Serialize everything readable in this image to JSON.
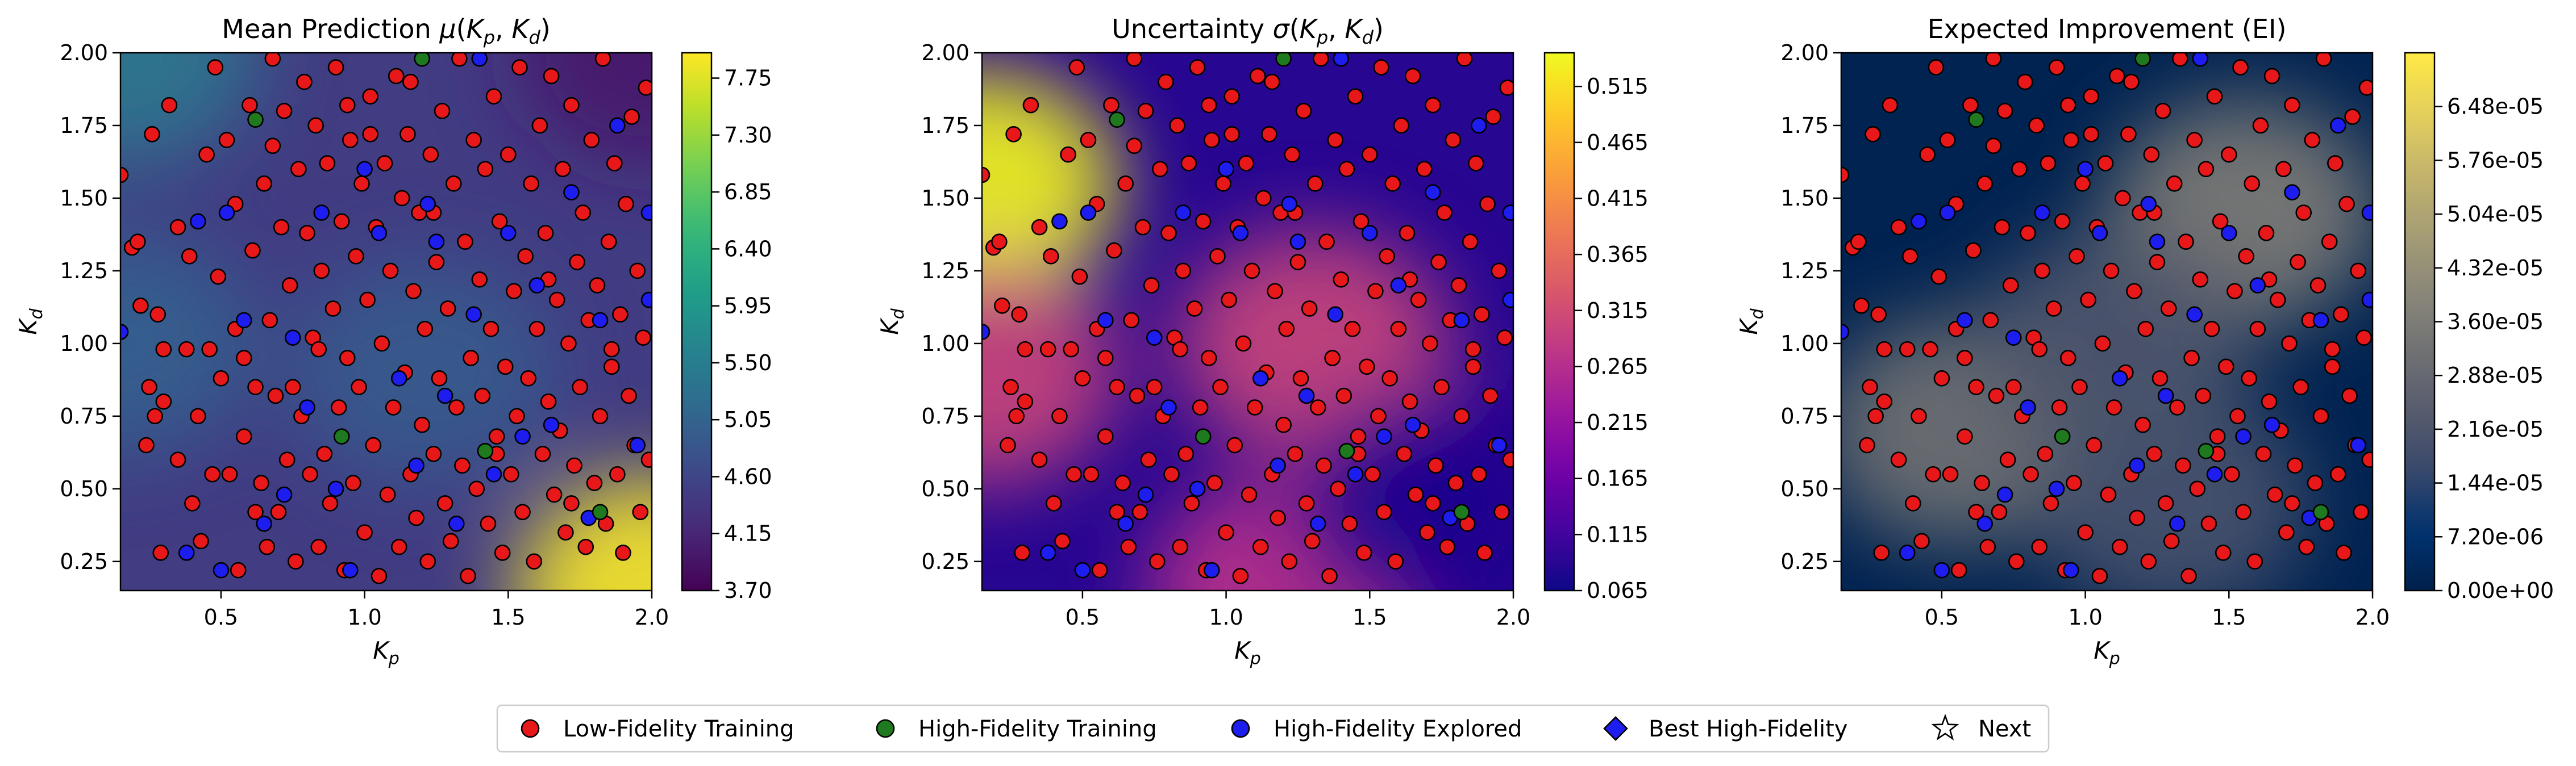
{
  "figure": {
    "legend": {
      "placement": "bottom-center",
      "items": [
        {
          "label": "Low-Fidelity Training",
          "marker": "circle",
          "color": "#e8181a"
        },
        {
          "label": "High-Fidelity Training",
          "marker": "circle",
          "color": "#1f7a1f"
        },
        {
          "label": "High-Fidelity Explored",
          "marker": "circle",
          "color": "#1d1df0"
        },
        {
          "label": "Best High-Fidelity",
          "marker": "diamond",
          "color": "#1d1df0"
        },
        {
          "label": "Next",
          "marker": "star",
          "color": "#ffffff"
        }
      ]
    },
    "marker_stroke": "#000000"
  },
  "chart_data": [
    {
      "type": "heatmap",
      "title": "Mean Prediction μ(K_p, K_d)",
      "title_main": "Mean Prediction ",
      "title_sym": "μ",
      "xlabel": "K_p",
      "ylabel": "K_d",
      "xlim": [
        0.15,
        2.0
      ],
      "ylim": [
        0.15,
        2.0
      ],
      "xticks": [
        0.5,
        1.0,
        1.5,
        2.0
      ],
      "xtick_labels": [
        "0.5",
        "1.0",
        "1.5",
        "2.0"
      ],
      "yticks": [
        0.25,
        0.5,
        0.75,
        1.0,
        1.25,
        1.5,
        1.75,
        2.0
      ],
      "ytick_labels": [
        "0.25",
        "0.50",
        "0.75",
        "1.00",
        "1.25",
        "1.50",
        "1.75",
        "2.00"
      ],
      "colormap": "viridis",
      "colorbar": {
        "range": [
          3.7,
          7.95
        ],
        "ticks": [
          3.7,
          4.15,
          4.6,
          5.05,
          5.5,
          5.95,
          6.4,
          6.85,
          7.3,
          7.75
        ],
        "tick_labels": [
          "3.70",
          "4.15",
          "4.60",
          "5.05",
          "5.50",
          "5.95",
          "6.40",
          "6.85",
          "7.30",
          "7.75"
        ]
      },
      "field_features": [
        {
          "x": 0.15,
          "y": 2.0,
          "value": 5.4
        },
        {
          "x": 0.15,
          "y": 1.0,
          "value": 5.0
        },
        {
          "x": 1.2,
          "y": 0.9,
          "value": 4.9
        },
        {
          "x": 2.0,
          "y": 0.15,
          "value": 7.9
        },
        {
          "x": 2.0,
          "y": 2.0,
          "value": 4.0
        }
      ],
      "grid": false
    },
    {
      "type": "heatmap",
      "title": "Uncertainty σ(K_p, K_d)",
      "title_main": "Uncertainty ",
      "title_sym": "σ",
      "xlabel": "K_p",
      "ylabel": "K_d",
      "xlim": [
        0.15,
        2.0
      ],
      "ylim": [
        0.15,
        2.0
      ],
      "xticks": [
        0.5,
        1.0,
        1.5,
        2.0
      ],
      "xtick_labels": [
        "0.5",
        "1.0",
        "1.5",
        "2.0"
      ],
      "yticks": [
        0.25,
        0.5,
        0.75,
        1.0,
        1.25,
        1.5,
        1.75,
        2.0
      ],
      "ytick_labels": [
        "0.25",
        "0.50",
        "0.75",
        "1.00",
        "1.25",
        "1.50",
        "1.75",
        "2.00"
      ],
      "colormap": "plasma",
      "colorbar": {
        "range": [
          0.065,
          0.545
        ],
        "ticks": [
          0.065,
          0.115,
          0.165,
          0.215,
          0.265,
          0.315,
          0.365,
          0.415,
          0.465,
          0.515
        ],
        "tick_labels": [
          "0.065",
          "0.115",
          "0.165",
          "0.215",
          "0.265",
          "0.315",
          "0.365",
          "0.415",
          "0.465",
          "0.515"
        ]
      },
      "field_features": [
        {
          "x": 0.15,
          "y": 1.55,
          "value": 0.54
        },
        {
          "x": 0.15,
          "y": 0.9,
          "value": 0.3
        },
        {
          "x": 1.3,
          "y": 1.0,
          "value": 0.3
        },
        {
          "x": 1.2,
          "y": 0.15,
          "value": 0.27
        },
        {
          "x": 1.7,
          "y": 0.45,
          "value": 0.08
        }
      ],
      "grid": false
    },
    {
      "type": "heatmap",
      "title": "Expected Improvement (EI)",
      "title_main": "Expected Improvement (EI)",
      "title_sym": "",
      "xlabel": "K_p",
      "ylabel": "K_d",
      "xlim": [
        0.15,
        2.0
      ],
      "ylim": [
        0.15,
        2.0
      ],
      "xticks": [
        0.5,
        1.0,
        1.5,
        2.0
      ],
      "xtick_labels": [
        "0.5",
        "1.0",
        "1.5",
        "2.0"
      ],
      "yticks": [
        0.25,
        0.5,
        0.75,
        1.0,
        1.25,
        1.5,
        1.75,
        2.0
      ],
      "ytick_labels": [
        "0.25",
        "0.50",
        "0.75",
        "1.00",
        "1.25",
        "1.50",
        "1.75",
        "2.00"
      ],
      "colormap": "cividis",
      "colorbar": {
        "range": [
          0.0,
          7.2e-05
        ],
        "ticks": [
          0.0,
          7.2e-06,
          1.44e-05,
          2.16e-05,
          2.88e-05,
          3.6e-05,
          4.32e-05,
          5.04e-05,
          5.76e-05,
          6.48e-05
        ],
        "tick_labels": [
          "0.00e+00",
          "7.20e-06",
          "1.44e-05",
          "2.16e-05",
          "2.88e-05",
          "3.60e-05",
          "4.32e-05",
          "5.04e-05",
          "5.76e-05",
          "6.48e-05"
        ]
      },
      "field_features": [
        {
          "x": 1.55,
          "y": 1.45,
          "value": 3.6e-05
        },
        {
          "x": 0.55,
          "y": 0.7,
          "value": 3.2e-05
        },
        {
          "x": 1.1,
          "y": 1.0,
          "value": 2.2e-05
        },
        {
          "x": 1.3,
          "y": 0.45,
          "value": 2e-05
        }
      ],
      "grid": false
    }
  ],
  "scatter": {
    "low_fidelity": [
      [
        0.15,
        1.58
      ],
      [
        0.19,
        1.33
      ],
      [
        0.21,
        1.35
      ],
      [
        0.22,
        1.13
      ],
      [
        0.24,
        0.65
      ],
      [
        0.25,
        0.85
      ],
      [
        0.27,
        0.75
      ],
      [
        0.28,
        1.1
      ],
      [
        0.29,
        0.28
      ],
      [
        0.3,
        0.8
      ],
      [
        0.32,
        1.82
      ],
      [
        0.35,
        1.4
      ],
      [
        0.38,
        0.98
      ],
      [
        0.4,
        0.45
      ],
      [
        0.42,
        0.75
      ],
      [
        0.43,
        0.32
      ],
      [
        0.45,
        1.65
      ],
      [
        0.47,
        0.55
      ],
      [
        0.49,
        1.23
      ],
      [
        0.5,
        0.88
      ],
      [
        0.52,
        1.7
      ],
      [
        0.53,
        0.55
      ],
      [
        0.55,
        1.48
      ],
      [
        0.56,
        0.22
      ],
      [
        0.58,
        0.68
      ],
      [
        0.6,
        1.82
      ],
      [
        0.61,
        1.32
      ],
      [
        0.62,
        0.85
      ],
      [
        0.64,
        0.52
      ],
      [
        0.65,
        1.55
      ],
      [
        0.66,
        0.3
      ],
      [
        0.67,
        1.08
      ],
      [
        0.68,
        1.68
      ],
      [
        0.69,
        0.82
      ],
      [
        0.7,
        0.42
      ],
      [
        0.71,
        1.4
      ],
      [
        0.72,
        1.8
      ],
      [
        0.73,
        0.6
      ],
      [
        0.74,
        1.2
      ],
      [
        0.75,
        0.85
      ],
      [
        0.76,
        0.25
      ],
      [
        0.77,
        1.6
      ],
      [
        0.78,
        0.75
      ],
      [
        0.79,
        1.9
      ],
      [
        0.8,
        1.38
      ],
      [
        0.81,
        0.55
      ],
      [
        0.82,
        1.02
      ],
      [
        0.83,
        1.75
      ],
      [
        0.84,
        0.3
      ],
      [
        0.85,
        1.25
      ],
      [
        0.86,
        0.62
      ],
      [
        0.87,
        1.62
      ],
      [
        0.88,
        0.45
      ],
      [
        0.89,
        1.12
      ],
      [
        0.9,
        1.95
      ],
      [
        0.91,
        0.78
      ],
      [
        0.92,
        1.42
      ],
      [
        0.93,
        0.22
      ],
      [
        0.94,
        0.95
      ],
      [
        0.95,
        1.7
      ],
      [
        0.96,
        0.52
      ],
      [
        0.97,
        1.3
      ],
      [
        0.98,
        0.85
      ],
      [
        0.99,
        1.55
      ],
      [
        1.0,
        0.35
      ],
      [
        1.01,
        1.15
      ],
      [
        1.02,
        1.85
      ],
      [
        1.03,
        0.65
      ],
      [
        1.04,
        1.4
      ],
      [
        1.05,
        0.2
      ],
      [
        1.06,
        1.0
      ],
      [
        1.07,
        1.62
      ],
      [
        1.08,
        0.48
      ],
      [
        1.09,
        1.25
      ],
      [
        1.1,
        0.78
      ],
      [
        1.11,
        1.92
      ],
      [
        1.12,
        0.3
      ],
      [
        1.13,
        1.5
      ],
      [
        1.14,
        0.9
      ],
      [
        1.15,
        1.72
      ],
      [
        1.16,
        0.55
      ],
      [
        1.17,
        1.18
      ],
      [
        1.18,
        0.4
      ],
      [
        1.19,
        1.45
      ],
      [
        1.2,
        0.72
      ],
      [
        1.21,
        1.05
      ],
      [
        1.22,
        0.25
      ],
      [
        1.23,
        1.65
      ],
      [
        1.24,
        0.62
      ],
      [
        1.25,
        1.28
      ],
      [
        1.26,
        0.88
      ],
      [
        1.27,
        1.8
      ],
      [
        1.28,
        0.45
      ],
      [
        1.29,
        1.12
      ],
      [
        1.3,
        0.32
      ],
      [
        1.31,
        1.55
      ],
      [
        1.32,
        0.78
      ],
      [
        1.33,
        1.98
      ],
      [
        1.34,
        0.58
      ],
      [
        1.35,
        1.35
      ],
      [
        1.36,
        0.2
      ],
      [
        1.37,
        0.95
      ],
      [
        1.38,
        1.7
      ],
      [
        1.39,
        0.5
      ],
      [
        1.4,
        1.22
      ],
      [
        1.41,
        0.82
      ],
      [
        1.42,
        1.6
      ],
      [
        1.43,
        0.38
      ],
      [
        1.44,
        1.05
      ],
      [
        1.45,
        1.85
      ],
      [
        1.46,
        0.68
      ],
      [
        1.47,
        1.42
      ],
      [
        1.48,
        0.28
      ],
      [
        1.49,
        0.92
      ],
      [
        1.5,
        1.65
      ],
      [
        1.51,
        0.55
      ],
      [
        1.52,
        1.18
      ],
      [
        1.53,
        0.75
      ],
      [
        1.54,
        1.95
      ],
      [
        1.55,
        0.42
      ],
      [
        1.56,
        1.3
      ],
      [
        1.57,
        0.88
      ],
      [
        1.58,
        1.55
      ],
      [
        1.59,
        0.25
      ],
      [
        1.6,
        1.05
      ],
      [
        1.61,
        1.75
      ],
      [
        1.62,
        0.62
      ],
      [
        1.63,
        1.38
      ],
      [
        1.64,
        0.8
      ],
      [
        1.65,
        1.92
      ],
      [
        1.66,
        0.48
      ],
      [
        1.67,
        1.15
      ],
      [
        1.68,
        0.7
      ],
      [
        1.69,
        1.6
      ],
      [
        1.7,
        0.35
      ],
      [
        1.71,
        1.0
      ],
      [
        1.72,
        1.82
      ],
      [
        1.73,
        0.58
      ],
      [
        1.74,
        1.28
      ],
      [
        1.75,
        0.85
      ],
      [
        1.76,
        1.45
      ],
      [
        1.77,
        0.3
      ],
      [
        1.78,
        1.08
      ],
      [
        1.79,
        1.7
      ],
      [
        1.8,
        0.52
      ],
      [
        1.81,
        1.2
      ],
      [
        1.82,
        0.75
      ],
      [
        1.83,
        1.98
      ],
      [
        1.84,
        0.38
      ],
      [
        1.85,
        1.35
      ],
      [
        1.86,
        0.92
      ],
      [
        1.87,
        1.62
      ],
      [
        1.88,
        0.55
      ],
      [
        1.89,
        1.1
      ],
      [
        1.9,
        0.28
      ],
      [
        1.91,
        1.48
      ],
      [
        1.92,
        0.82
      ],
      [
        1.93,
        1.78
      ],
      [
        1.94,
        0.65
      ],
      [
        1.95,
        1.25
      ],
      [
        1.96,
        0.42
      ],
      [
        1.97,
        1.02
      ],
      [
        1.98,
        1.88
      ],
      [
        1.99,
        0.6
      ],
      [
        0.55,
        1.05
      ],
      [
        0.48,
        1.95
      ],
      [
        0.35,
        0.6
      ],
      [
        0.68,
        1.98
      ],
      [
        0.26,
        1.72
      ],
      [
        0.46,
        0.98
      ],
      [
        0.62,
        0.42
      ],
      [
        0.84,
        0.98
      ],
      [
        1.02,
        1.72
      ],
      [
        1.24,
        1.45
      ],
      [
        1.46,
        0.62
      ],
      [
        1.64,
        1.22
      ],
      [
        1.86,
        0.98
      ],
      [
        1.16,
        1.9
      ],
      [
        0.94,
        1.82
      ],
      [
        0.58,
        0.95
      ],
      [
        0.39,
        1.3
      ],
      [
        0.3,
        0.98
      ],
      [
        1.72,
        0.45
      ]
    ],
    "high_fidelity": [
      [
        0.62,
        1.77
      ],
      [
        0.92,
        0.68
      ],
      [
        1.2,
        1.98
      ],
      [
        1.42,
        0.63
      ],
      [
        1.82,
        0.42
      ]
    ],
    "explored": [
      [
        0.15,
        1.04
      ],
      [
        0.38,
        0.28
      ],
      [
        0.42,
        1.42
      ],
      [
        0.5,
        0.22
      ],
      [
        0.52,
        1.45
      ],
      [
        0.58,
        1.08
      ],
      [
        0.65,
        0.38
      ],
      [
        0.72,
        0.48
      ],
      [
        0.8,
        0.78
      ],
      [
        0.85,
        1.45
      ],
      [
        0.9,
        0.5
      ],
      [
        0.95,
        0.22
      ],
      [
        1.0,
        1.6
      ],
      [
        1.05,
        1.38
      ],
      [
        1.12,
        0.88
      ],
      [
        1.18,
        0.58
      ],
      [
        1.22,
        1.48
      ],
      [
        1.28,
        0.82
      ],
      [
        1.32,
        0.38
      ],
      [
        1.38,
        1.1
      ],
      [
        1.45,
        0.55
      ],
      [
        1.5,
        1.38
      ],
      [
        1.55,
        0.68
      ],
      [
        1.6,
        1.2
      ],
      [
        1.65,
        0.72
      ],
      [
        1.72,
        1.52
      ],
      [
        1.78,
        0.4
      ],
      [
        1.82,
        1.08
      ],
      [
        1.88,
        1.75
      ],
      [
        1.95,
        0.65
      ],
      [
        1.99,
        1.45
      ],
      [
        1.99,
        1.15
      ],
      [
        1.25,
        1.35
      ],
      [
        0.75,
        1.02
      ],
      [
        1.4,
        1.98
      ]
    ]
  }
}
